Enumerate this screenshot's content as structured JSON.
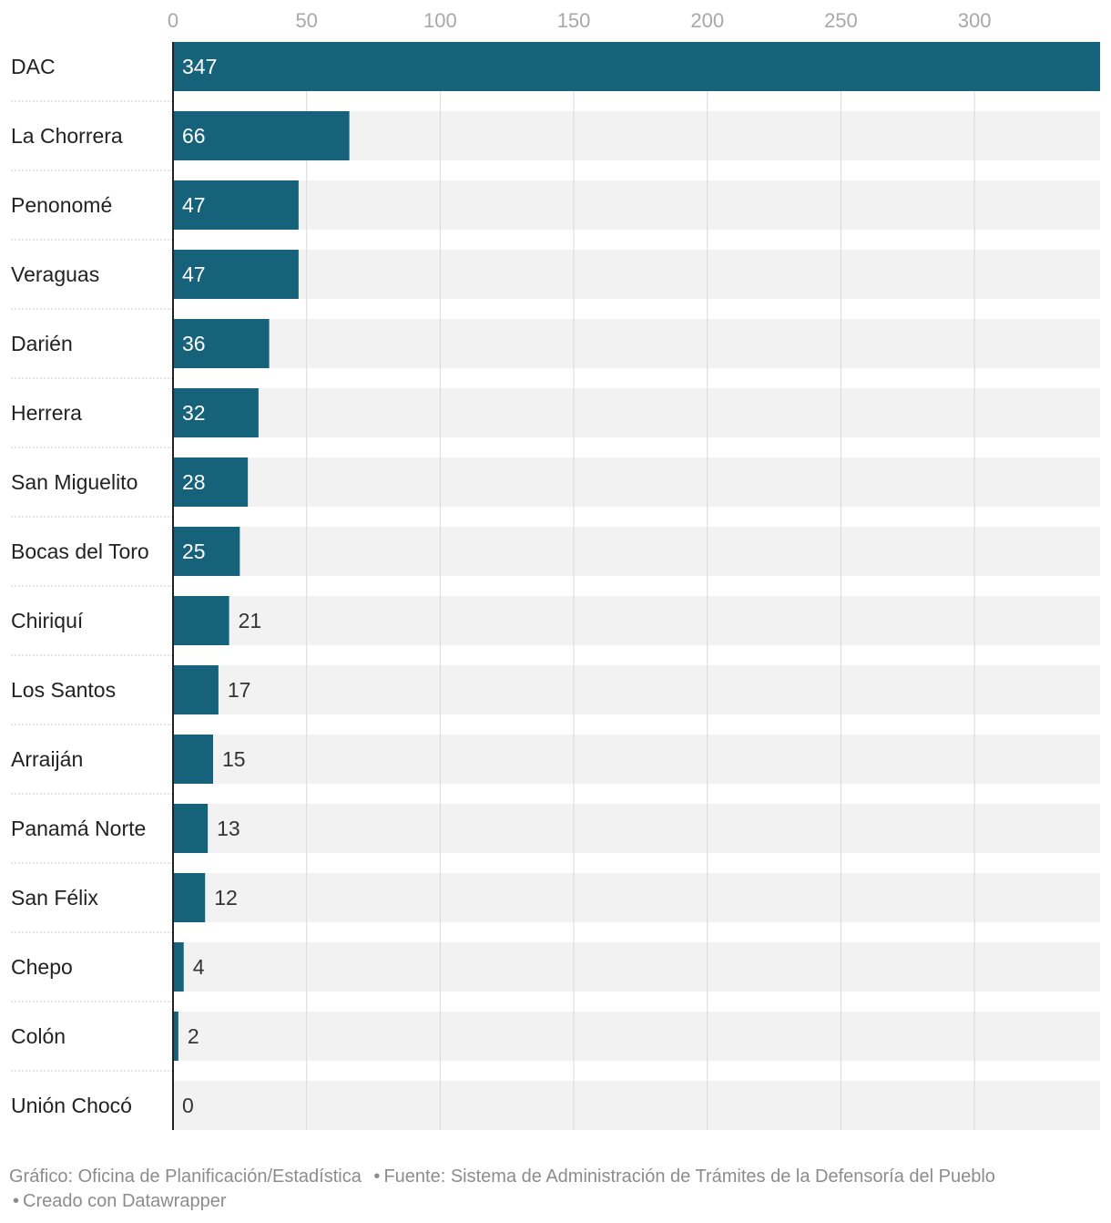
{
  "chart_data": {
    "type": "bar",
    "orientation": "horizontal",
    "title": "",
    "xlabel": "",
    "ylabel": "",
    "xlim": [
      0,
      347
    ],
    "x_ticks": [
      0,
      50,
      100,
      150,
      200,
      250,
      300
    ],
    "grid": true,
    "categories": [
      "DAC",
      "La Chorrera",
      "Penonomé",
      "Veraguas",
      "Darién",
      "Herrera",
      "San Miguelito",
      "Bocas del Toro",
      "Chiriquí",
      "Los Santos",
      "Arraiján",
      "Panamá Norte",
      "San Félix",
      "Chepo",
      "Colón",
      "Unión Chocó"
    ],
    "values": [
      347,
      66,
      47,
      47,
      36,
      32,
      28,
      25,
      21,
      17,
      15,
      13,
      12,
      4,
      2,
      0
    ],
    "colors": {
      "bar": "#17627b",
      "track": "#f2f2f2",
      "grid": "#d9d9d9",
      "label_inside": "#ffffff",
      "label_outside": "#333333",
      "tick": "#a8a8a8"
    }
  },
  "footer": {
    "graphic": "Gráfico: Oficina de Planificación/Estadística",
    "source": "Fuente: Sistema de Administración de Trámites de la Defensoría del Pueblo",
    "created": "Creado con Datawrapper",
    "bullet": "•"
  }
}
